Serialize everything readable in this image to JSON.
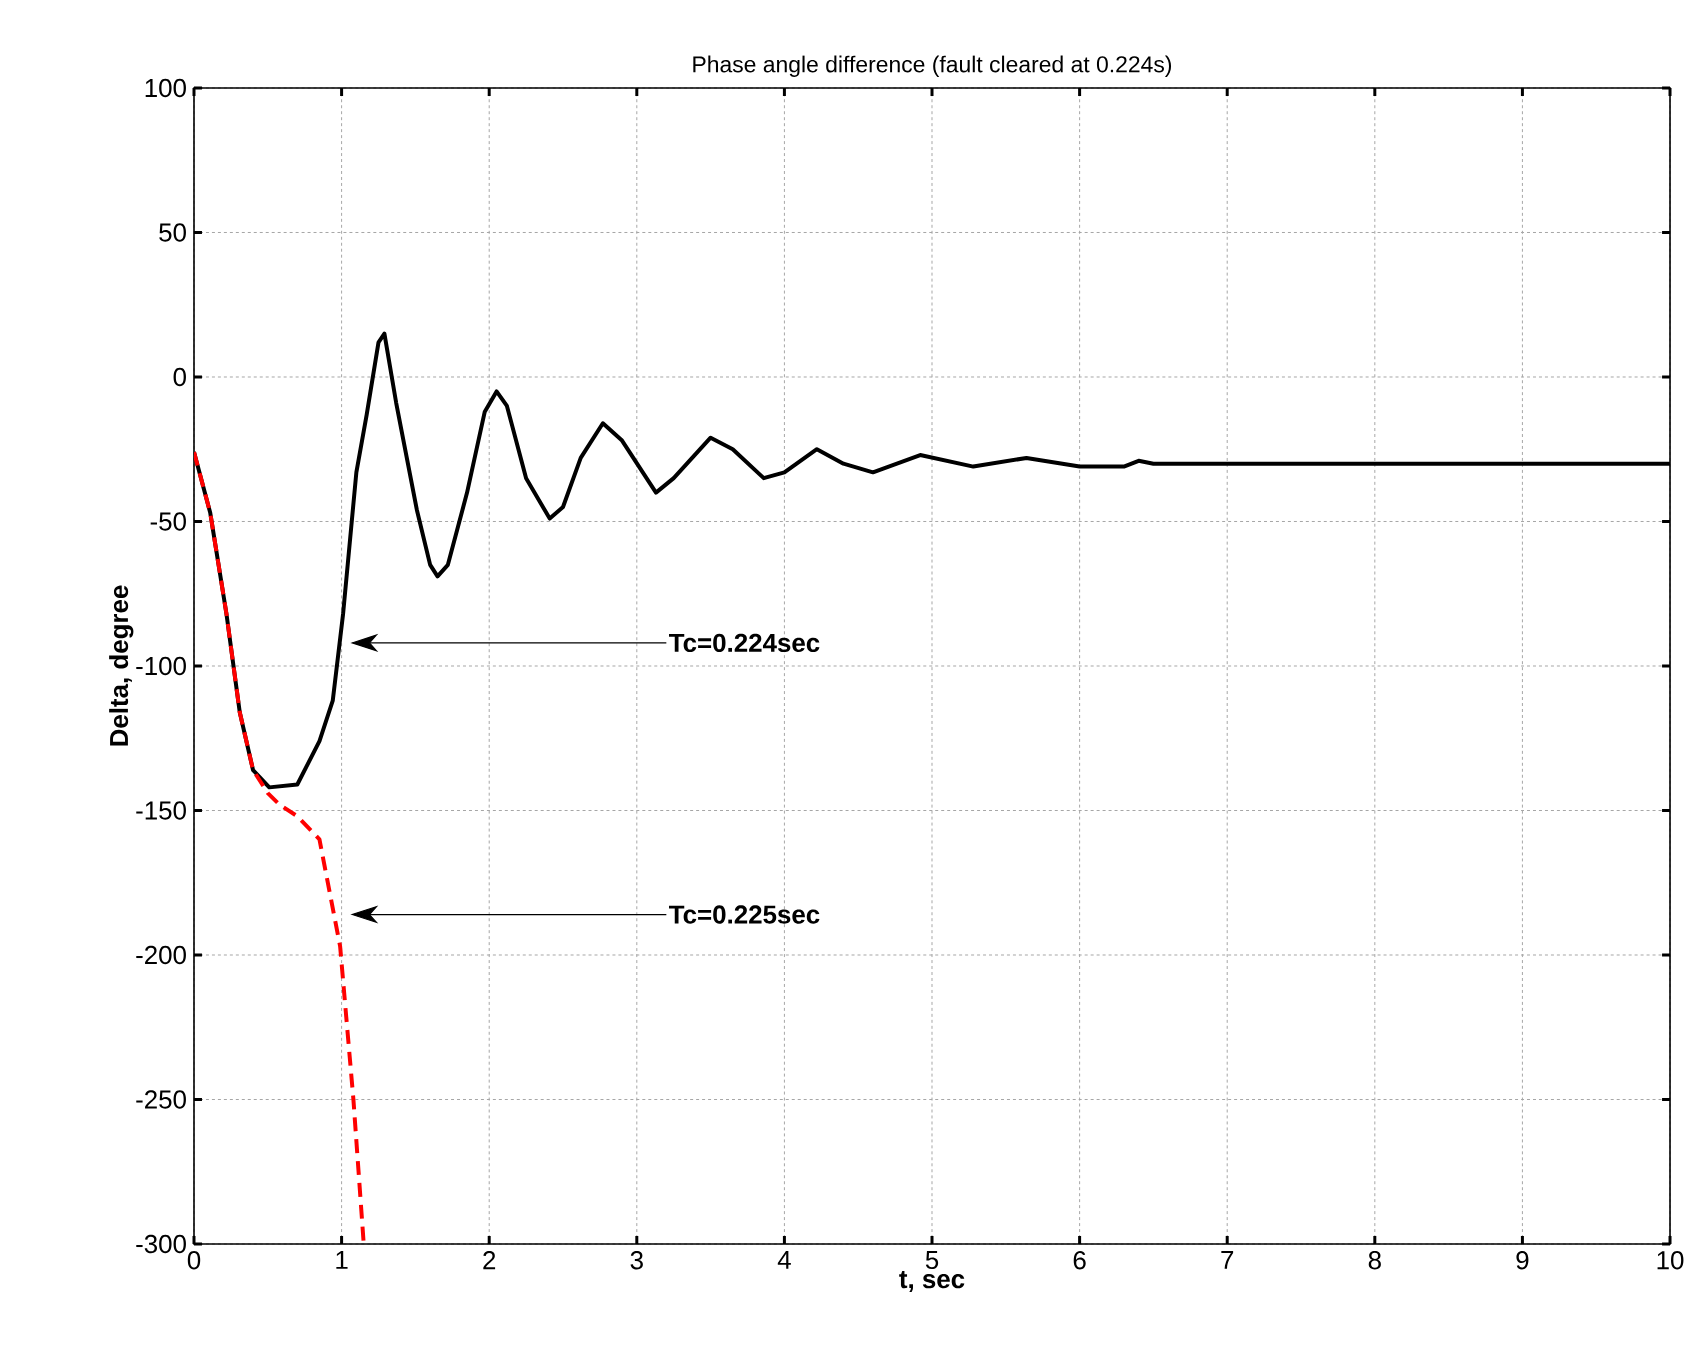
{
  "chart_data": {
    "type": "line",
    "title": "Phase angle difference (fault cleared at 0.224s)",
    "xlabel": "t, sec",
    "ylabel": "Delta, degree",
    "xlim": [
      0,
      10
    ],
    "ylim": [
      -300,
      100
    ],
    "xticks": [
      0,
      1,
      2,
      3,
      4,
      5,
      6,
      7,
      8,
      9,
      10
    ],
    "yticks": [
      -300,
      -250,
      -200,
      -150,
      -100,
      -50,
      0,
      50,
      100
    ],
    "grid": true,
    "series": [
      {
        "color": "#000000",
        "line_style": "solid",
        "x": [
          0,
          0.11,
          0.22,
          0.31,
          0.4,
          0.51,
          0.7,
          0.85,
          0.94,
          1.01,
          1.1,
          1.17,
          1.25,
          1.29,
          1.37,
          1.51,
          1.6,
          1.65,
          1.72,
          1.85,
          1.97,
          2.05,
          2.12,
          2.25,
          2.41,
          2.5,
          2.62,
          2.77,
          2.9,
          3.13,
          3.25,
          3.5,
          3.65,
          3.86,
          4.0,
          4.22,
          4.4,
          4.6,
          4.92,
          5.28,
          5.64,
          6.0,
          6.3,
          6.4,
          6.5,
          10
        ],
        "values": [
          -26,
          -47,
          -82,
          -116,
          -136,
          -142,
          -141,
          -126,
          -112,
          -82,
          -33,
          -13,
          12,
          15,
          -9,
          -46,
          -65,
          -69,
          -65,
          -40,
          -12,
          -5,
          -10,
          -35,
          -49,
          -45,
          -28,
          -16,
          -22,
          -40,
          -35,
          -21,
          -25,
          -35,
          -33,
          -25,
          -30,
          -33,
          -27,
          -31,
          -28,
          -31,
          -31,
          -29,
          -30,
          -30
        ]
      },
      {
        "color": "#ff0000",
        "line_style": "dashed",
        "x": [
          0,
          0.11,
          0.22,
          0.31,
          0.4,
          0.5,
          0.58,
          0.7,
          0.85,
          0.99,
          1.08,
          1.15
        ],
        "values": [
          -26,
          -47,
          -82,
          -116,
          -136,
          -144,
          -148,
          -152,
          -160,
          -197,
          -250,
          -300
        ]
      }
    ],
    "annotations": [
      "Tc=0.224sec",
      "Tc=0.225sec"
    ]
  }
}
